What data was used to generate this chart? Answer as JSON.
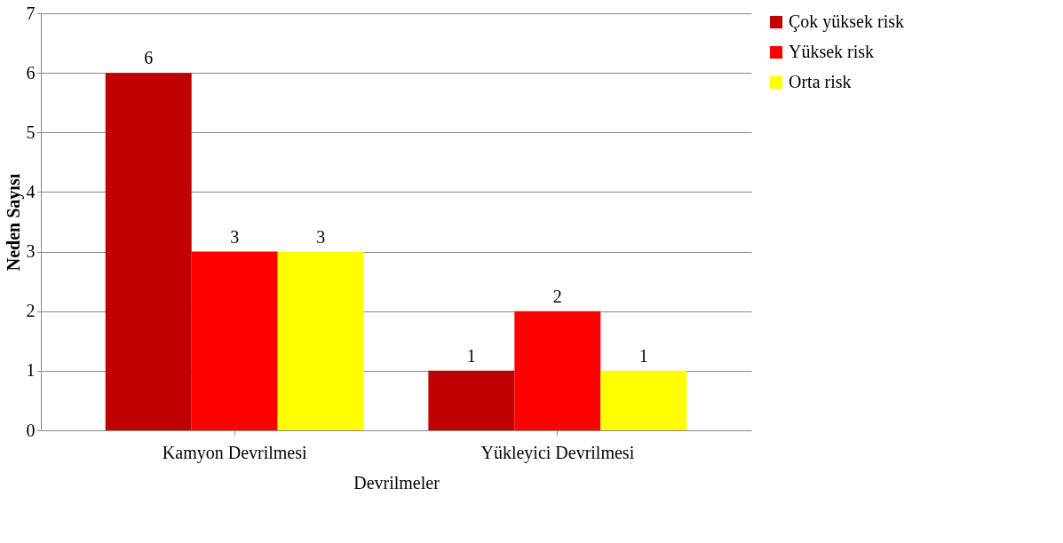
{
  "chart_data": {
    "type": "bar",
    "xlabel": "Devrilmeler",
    "ylabel": "Neden Sayısı",
    "categories": [
      "Kamyon Devrilmesi",
      "Yükleyici Devrilmesi"
    ],
    "series": [
      {
        "name": "Çok yüksek risk",
        "color": "#c00000",
        "values": [
          6,
          1
        ]
      },
      {
        "name": "Yüksek risk",
        "color": "#ff0000",
        "values": [
          3,
          2
        ]
      },
      {
        "name": "Orta risk",
        "color": "#ffff00",
        "values": [
          3,
          1
        ]
      }
    ],
    "ylim": [
      0,
      7
    ],
    "yticks": [
      0,
      1,
      2,
      3,
      4,
      5,
      6,
      7
    ],
    "grid": "y",
    "legend": "right",
    "data_labels": true
  }
}
